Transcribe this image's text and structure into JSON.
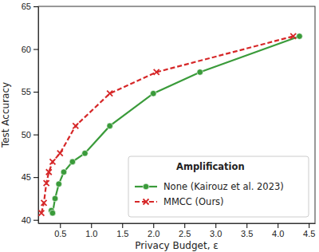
{
  "chart_data": {
    "type": "line",
    "x_label": "Privacy Budget, ε",
    "y_label": "Test Accuracy",
    "xlim": [
      0.15,
      4.6
    ],
    "ylim": [
      39.6,
      65
    ],
    "xticks": [
      0.5,
      {
        "value": 1,
        "label": "1.0"
      },
      1.5,
      {
        "value": 2,
        "label": "2.0"
      },
      2.5,
      {
        "value": 3,
        "label": "3.0"
      },
      3.5,
      {
        "value": 4,
        "label": "4.0"
      },
      4.5
    ],
    "yticks": [
      40,
      45,
      50,
      55,
      60,
      65
    ],
    "grid": false,
    "legend": "lower right",
    "legend_title": "Amplification",
    "series": [
      {
        "name": "None (Kairouz et al. 2023)",
        "color": "#3a9b3a",
        "marker": "circle",
        "line_style": "solid",
        "x": [
          0.36,
          0.38,
          0.42,
          0.48,
          0.56,
          0.7,
          0.9,
          1.3,
          2.0,
          2.75,
          4.35
        ],
        "values": [
          41.1,
          40.8,
          42.5,
          44.2,
          45.6,
          46.8,
          47.8,
          51.0,
          54.8,
          57.3,
          61.5
        ]
      },
      {
        "name": "MMCC (Ours)",
        "color": "#d62728",
        "marker": "x",
        "line_style": "dashed",
        "x": [
          0.2,
          0.24,
          0.28,
          0.32,
          0.38,
          0.5,
          0.75,
          1.3,
          2.05,
          4.25
        ],
        "values": [
          40.8,
          42.0,
          44.3,
          45.6,
          46.8,
          47.8,
          51.0,
          54.8,
          57.3,
          61.5
        ]
      }
    ]
  }
}
